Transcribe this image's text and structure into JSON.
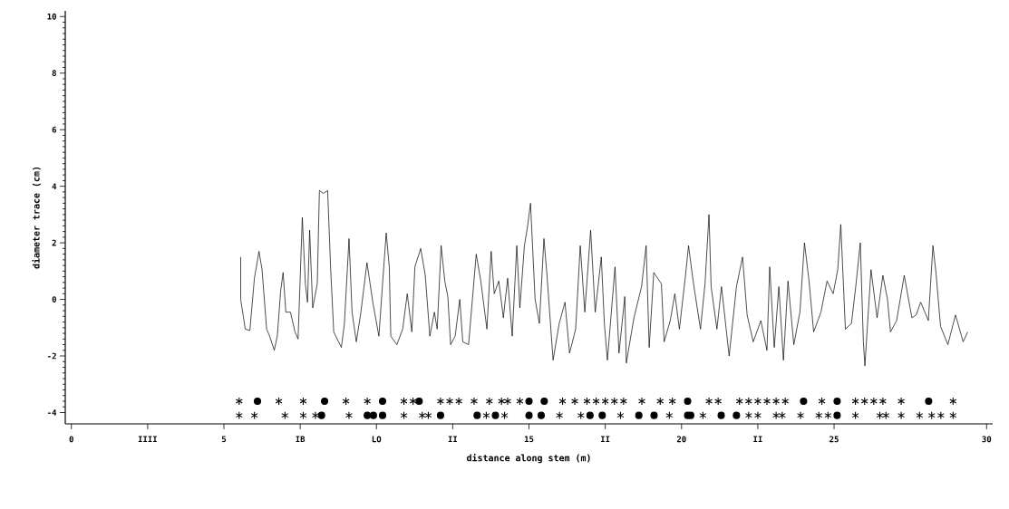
{
  "chart_data": {
    "type": "line",
    "xlabel": "distance along stem (m)",
    "ylabel": "diameter trace (cm)",
    "xlim": [
      -0.2,
      30.2
    ],
    "ylim": [
      -4.4,
      10.2
    ],
    "xticks": [
      0,
      {
        "value": 2.5,
        "label": "IIII"
      },
      5,
      {
        "value": 7.5,
        "label": "IB"
      },
      {
        "value": 10,
        "label": "LO"
      },
      {
        "value": 12.5,
        "label": "II"
      },
      15,
      {
        "value": 17.5,
        "label": "II"
      },
      20,
      {
        "value": 22.5,
        "label": "II"
      },
      25,
      30
    ],
    "yticks": [
      -4,
      -2,
      0,
      2,
      4,
      6,
      8,
      10
    ],
    "grid": false,
    "series": [
      {
        "color": "#000000",
        "marker": "none",
        "line_style": "solid",
        "x": [
          5.55,
          5.55,
          5.7,
          5.85,
          6.0,
          6.15,
          6.25,
          6.4,
          6.5,
          6.65,
          6.75,
          6.86,
          6.94,
          7.03,
          7.18,
          7.33,
          7.43,
          7.57,
          7.67,
          7.74,
          7.81,
          7.91,
          8.06,
          8.13,
          8.26,
          8.4,
          8.5,
          8.6,
          8.85,
          8.95,
          9.1,
          9.2,
          9.34,
          9.49,
          9.69,
          9.88,
          10.08,
          10.22,
          10.32,
          10.42,
          10.47,
          10.67,
          10.86,
          11.01,
          11.16,
          11.26,
          11.45,
          11.6,
          11.75,
          11.9,
          11.99,
          12.12,
          12.24,
          12.34,
          12.43,
          12.58,
          12.73,
          12.83,
          13.02,
          13.27,
          13.42,
          13.62,
          13.76,
          13.86,
          14.01,
          14.16,
          14.3,
          14.45,
          14.6,
          14.7,
          14.85,
          14.95,
          15.05,
          15.2,
          15.34,
          15.49,
          15.59,
          15.79,
          15.99,
          16.18,
          16.33,
          16.53,
          16.68,
          16.83,
          17.02,
          17.17,
          17.37,
          17.47,
          17.57,
          17.82,
          17.95,
          18.14,
          18.19,
          18.44,
          18.69,
          18.84,
          18.94,
          19.09,
          19.34,
          19.43,
          19.63,
          19.78,
          19.93,
          20.13,
          20.23,
          20.38,
          20.62,
          20.77,
          20.9,
          20.97,
          21.16,
          21.31,
          21.56,
          21.8,
          22.0,
          22.15,
          22.35,
          22.6,
          22.8,
          22.89,
          23.04,
          23.19,
          23.34,
          23.49,
          23.68,
          23.88,
          24.03,
          24.18,
          24.33,
          24.57,
          24.77,
          24.97,
          25.12,
          25.22,
          25.37,
          25.57,
          25.71,
          25.86,
          25.96,
          26.01,
          26.21,
          26.41,
          26.6,
          26.75,
          26.85,
          27.05,
          27.3,
          27.55,
          27.69,
          27.84,
          28.09,
          28.24,
          28.34,
          28.49,
          28.73,
          28.98,
          29.23,
          29.38
        ],
        "values": [
          1.5,
          0.0,
          -1.05,
          -1.1,
          0.75,
          1.7,
          1.05,
          -1.05,
          -1.3,
          -1.8,
          -1.3,
          0.3,
          0.95,
          -0.45,
          -0.45,
          -1.15,
          -1.4,
          2.9,
          0.55,
          -0.1,
          2.45,
          -0.3,
          0.55,
          3.85,
          3.75,
          3.85,
          1.05,
          -1.15,
          -1.7,
          -0.85,
          2.15,
          -0.45,
          -1.5,
          -0.45,
          1.3,
          -0.1,
          -1.3,
          0.85,
          2.35,
          1.15,
          -1.3,
          -1.6,
          -1.05,
          0.2,
          -1.15,
          1.15,
          1.8,
          0.85,
          -1.3,
          -0.45,
          -1.05,
          1.9,
          0.65,
          0.1,
          -1.6,
          -1.3,
          0.0,
          -1.5,
          -1.6,
          1.6,
          0.65,
          -1.05,
          1.7,
          0.2,
          0.65,
          -0.65,
          0.75,
          -1.3,
          1.9,
          -0.3,
          1.9,
          2.55,
          3.4,
          0.0,
          -0.85,
          2.15,
          0.85,
          -2.15,
          -0.85,
          -0.1,
          -1.9,
          -1.05,
          1.9,
          -0.45,
          2.45,
          -0.45,
          1.5,
          -0.85,
          -2.15,
          1.15,
          -1.9,
          0.1,
          -2.25,
          -0.65,
          0.45,
          1.9,
          -1.7,
          0.95,
          0.55,
          -1.5,
          -0.75,
          0.2,
          -1.05,
          0.85,
          1.9,
          0.65,
          -1.05,
          0.55,
          3.0,
          0.45,
          -1.05,
          0.45,
          -2.0,
          0.45,
          1.5,
          -0.55,
          -1.5,
          -0.75,
          -1.8,
          1.15,
          -1.7,
          0.45,
          -2.15,
          0.65,
          -1.6,
          -0.45,
          2.0,
          0.65,
          -1.15,
          -0.45,
          0.65,
          0.2,
          1.05,
          2.65,
          -1.05,
          -0.85,
          0.45,
          2.0,
          -1.5,
          -2.35,
          1.05,
          -0.65,
          0.85,
          0.0,
          -1.15,
          -0.75,
          0.85,
          -0.65,
          -0.55,
          -0.1,
          -0.75,
          1.9,
          0.95,
          -0.95,
          -1.6,
          -0.55,
          -1.5,
          -1.15
        ]
      },
      {
        "type": "scatter",
        "color": "#000000",
        "marker": "cross",
        "x": [
          5.5,
          6.8,
          7.6,
          9.0,
          9.7,
          10.9,
          11.2,
          12.1,
          12.4,
          12.7,
          13.2,
          13.7,
          14.1,
          14.3,
          14.7,
          16.1,
          16.5,
          16.9,
          17.2,
          17.5,
          17.8,
          18.1,
          18.7,
          19.3,
          19.7,
          20.9,
          21.2,
          21.9,
          22.2,
          22.5,
          22.8,
          23.1,
          23.4,
          24.6,
          25.7,
          26.0,
          26.3,
          26.6,
          27.2,
          28.9,
          5.5,
          6.0,
          7.0,
          7.6,
          8.0,
          9.1,
          10.9,
          11.5,
          11.7,
          13.6,
          14.2,
          16.0,
          16.7,
          18.0,
          19.6,
          20.7,
          22.2,
          22.5,
          23.1,
          23.3,
          23.9,
          24.5,
          24.8,
          25.7,
          26.5,
          26.7,
          27.2,
          27.8,
          28.2,
          28.5,
          28.9
        ],
        "values": [
          -3.6,
          -3.6,
          -3.6,
          -3.6,
          -3.6,
          -3.6,
          -3.6,
          -3.6,
          -3.6,
          -3.6,
          -3.6,
          -3.6,
          -3.6,
          -3.6,
          -3.6,
          -3.6,
          -3.6,
          -3.6,
          -3.6,
          -3.6,
          -3.6,
          -3.6,
          -3.6,
          -3.6,
          -3.6,
          -3.6,
          -3.6,
          -3.6,
          -3.6,
          -3.6,
          -3.6,
          -3.6,
          -3.6,
          -3.6,
          -3.6,
          -3.6,
          -3.6,
          -3.6,
          -3.6,
          -3.6,
          -4.1,
          -4.1,
          -4.1,
          -4.1,
          -4.1,
          -4.1,
          -4.1,
          -4.1,
          -4.1,
          -4.1,
          -4.1,
          -4.1,
          -4.1,
          -4.1,
          -4.1,
          -4.1,
          -4.1,
          -4.1,
          -4.1,
          -4.1,
          -4.1,
          -4.1,
          -4.1,
          -4.1,
          -4.1,
          -4.1,
          -4.1,
          -4.1,
          -4.1,
          -4.1,
          -4.1
        ]
      },
      {
        "type": "scatter",
        "color": "#000000",
        "marker": "circle",
        "x": [
          6.1,
          8.3,
          10.2,
          11.4,
          15.0,
          15.5,
          20.2,
          24.0,
          25.1,
          28.1,
          8.2,
          9.7,
          9.9,
          10.2,
          12.1,
          13.3,
          13.9,
          15.0,
          15.4,
          17.0,
          17.4,
          18.6,
          19.1,
          20.2,
          20.3,
          21.3,
          21.8,
          25.1
        ],
        "values": [
          -3.6,
          -3.6,
          -3.6,
          -3.6,
          -3.6,
          -3.6,
          -3.6,
          -3.6,
          -3.6,
          -3.6,
          -4.1,
          -4.1,
          -4.1,
          -4.1,
          -4.1,
          -4.1,
          -4.1,
          -4.1,
          -4.1,
          -4.1,
          -4.1,
          -4.1,
          -4.1,
          -4.1,
          -4.1,
          -4.1,
          -4.1,
          -4.1
        ]
      }
    ]
  }
}
